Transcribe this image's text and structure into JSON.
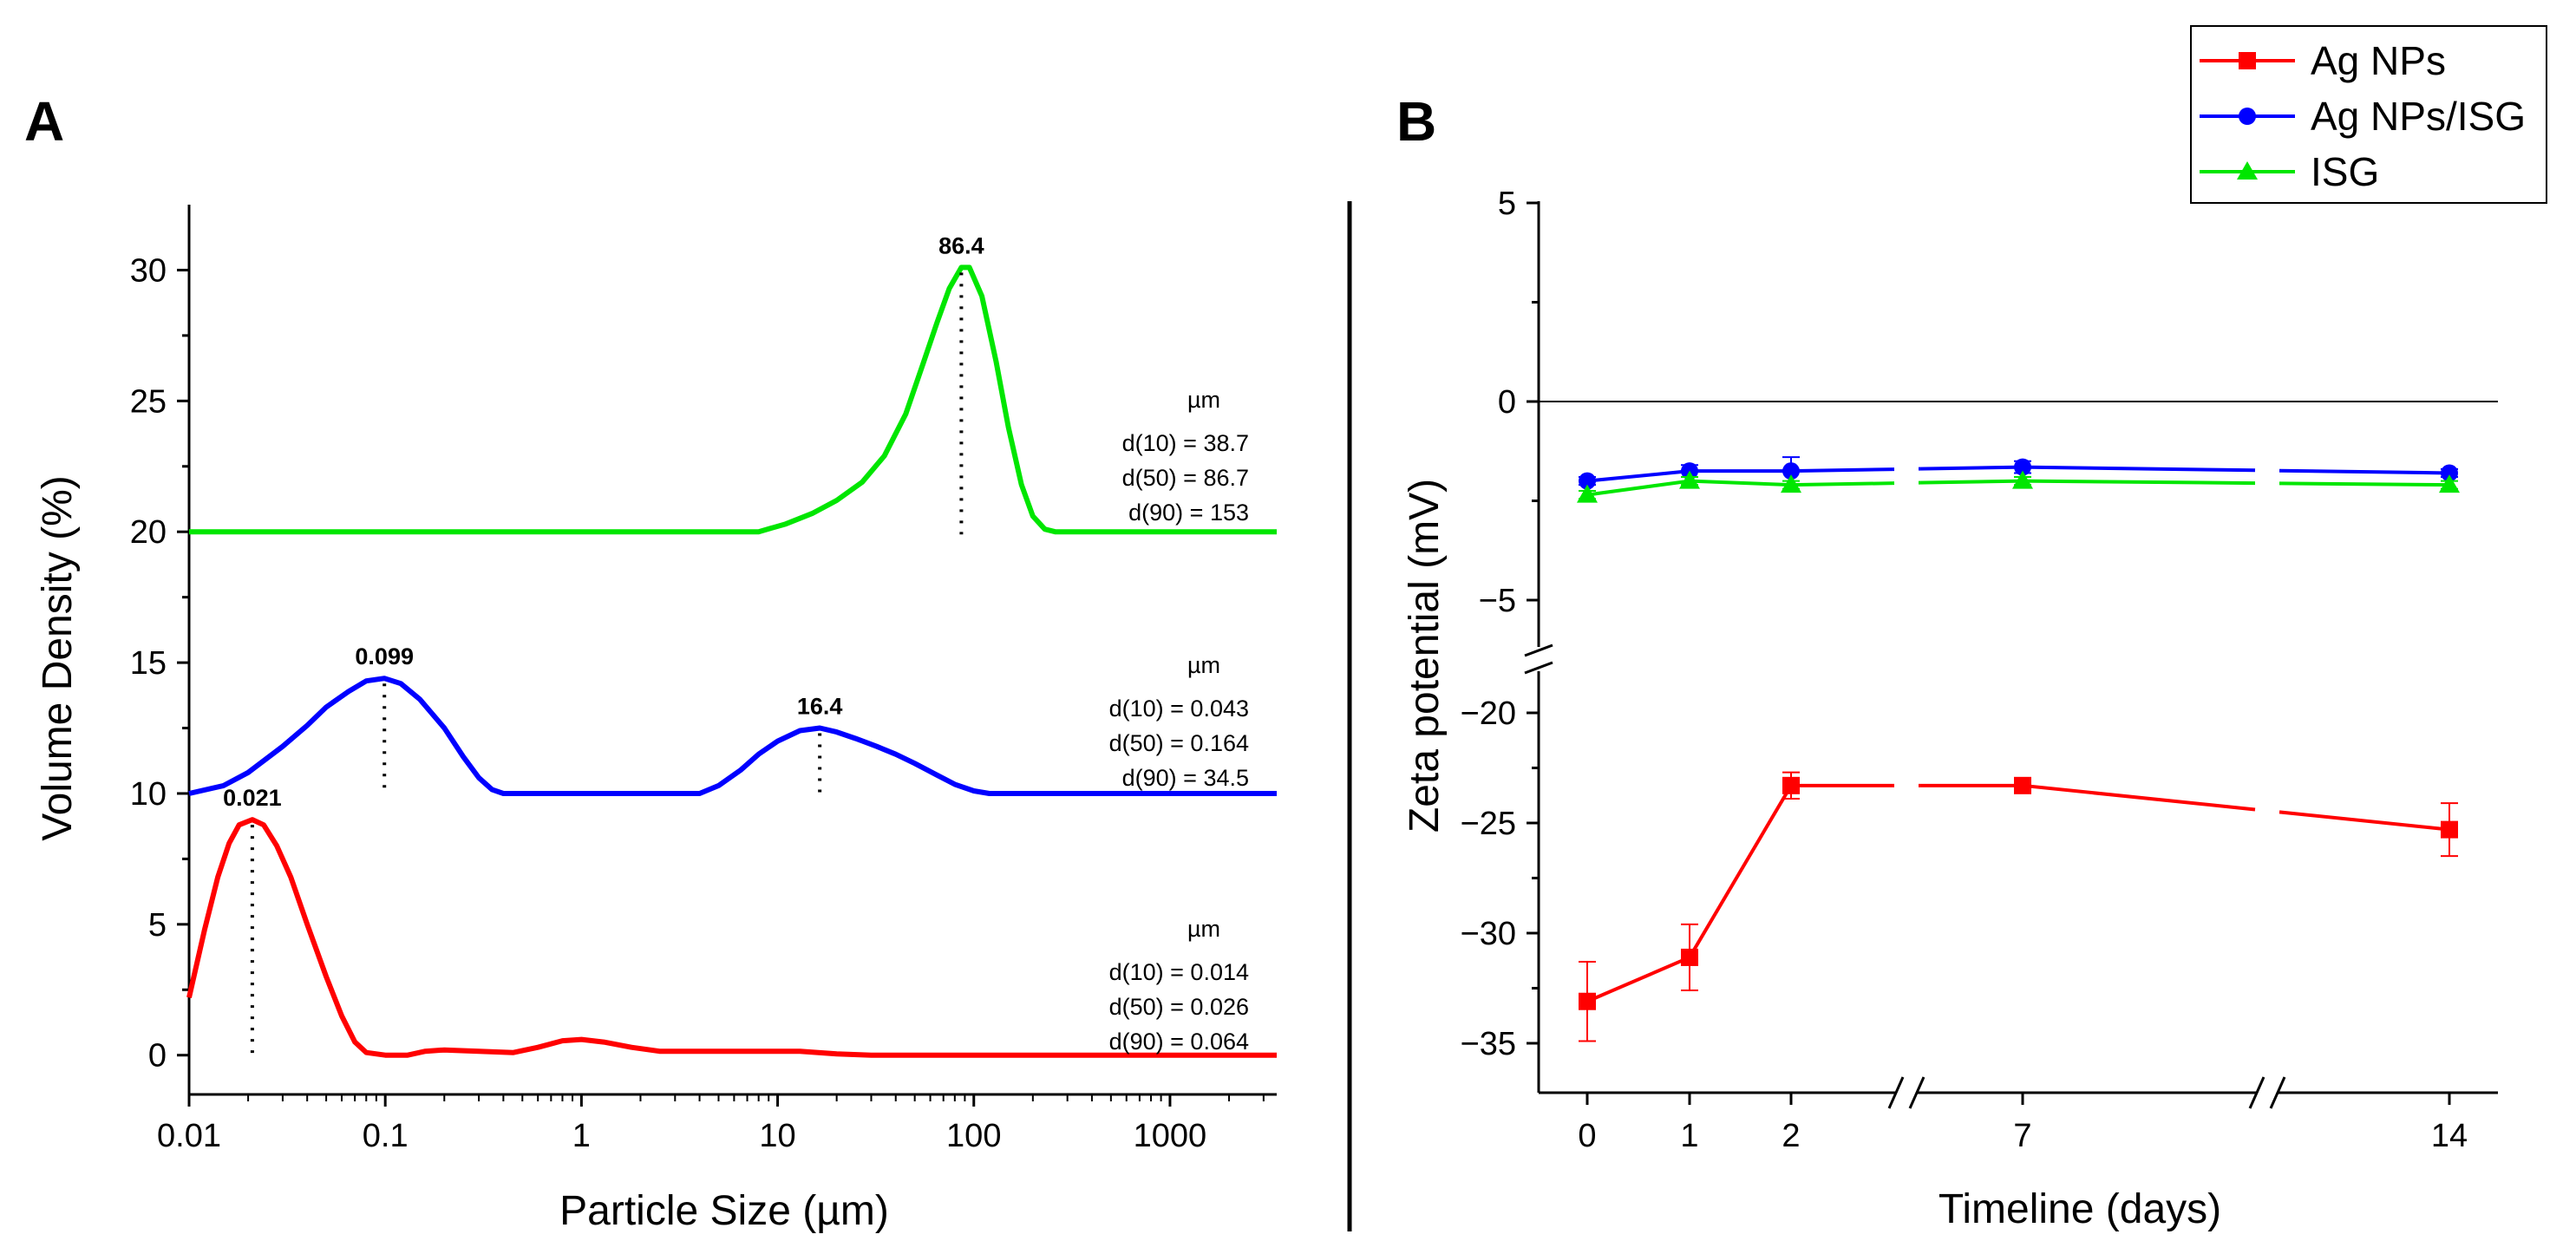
{
  "figure": {
    "panel_a_label": "A",
    "panel_b_label": "B"
  },
  "chart_data": [
    {
      "type": "line",
      "panel": "A",
      "title": "",
      "xlabel": "Particle Size (µm)",
      "ylabel": "Volume Density (%)",
      "xscale": "log",
      "xlim": [
        0.01,
        3500
      ],
      "ylim": [
        -1.5,
        32.5
      ],
      "x_ticks": [
        {
          "value": 0.01,
          "label": "0.01"
        },
        {
          "value": 0.1,
          "label": "0.1"
        },
        {
          "value": 1,
          "label": "1"
        },
        {
          "value": 10,
          "label": "10"
        },
        {
          "value": 100,
          "label": "100"
        },
        {
          "value": 1000,
          "label": "1000"
        }
      ],
      "y_ticks": [
        {
          "value": 0,
          "label": "0"
        },
        {
          "value": 5,
          "label": "5"
        },
        {
          "value": 10,
          "label": "10"
        },
        {
          "value": 15,
          "label": "15"
        },
        {
          "value": 20,
          "label": "20"
        },
        {
          "value": 25,
          "label": "25"
        },
        {
          "value": 30,
          "label": "30"
        }
      ],
      "series": [
        {
          "name": "Ag NPs",
          "color": "#ff0000",
          "points": [
            [
              0.01,
              2.2
            ],
            [
              0.012,
              4.8
            ],
            [
              0.014,
              6.8
            ],
            [
              0.016,
              8.1
            ],
            [
              0.018,
              8.8
            ],
            [
              0.021,
              9.0
            ],
            [
              0.024,
              8.8
            ],
            [
              0.028,
              8.0
            ],
            [
              0.033,
              6.8
            ],
            [
              0.04,
              5.0
            ],
            [
              0.05,
              3.0
            ],
            [
              0.06,
              1.5
            ],
            [
              0.07,
              0.5
            ],
            [
              0.08,
              0.1
            ],
            [
              0.1,
              0.0
            ],
            [
              0.13,
              0.0
            ],
            [
              0.16,
              0.15
            ],
            [
              0.2,
              0.2
            ],
            [
              0.3,
              0.15
            ],
            [
              0.45,
              0.1
            ],
            [
              0.6,
              0.3
            ],
            [
              0.8,
              0.55
            ],
            [
              1.0,
              0.6
            ],
            [
              1.3,
              0.5
            ],
            [
              1.8,
              0.3
            ],
            [
              2.5,
              0.15
            ],
            [
              5,
              0.15
            ],
            [
              10,
              0.15
            ],
            [
              13,
              0.15
            ],
            [
              20,
              0.05
            ],
            [
              30,
              0.0
            ],
            [
              100,
              0.0
            ],
            [
              3500,
              0.0
            ]
          ],
          "peaks": [
            {
              "x": 0.021,
              "y": 9.0,
              "label": "0.021"
            }
          ],
          "stats": {
            "unit": "µm",
            "d10": "d(10) = 0.014",
            "d50": "d(50) = 0.026",
            "d90": "d(90) = 0.064"
          }
        },
        {
          "name": "Ag NPs/ISG",
          "color": "#0000ff",
          "points": [
            [
              0.01,
              10.0
            ],
            [
              0.015,
              10.3
            ],
            [
              0.02,
              10.8
            ],
            [
              0.03,
              11.8
            ],
            [
              0.04,
              12.6
            ],
            [
              0.05,
              13.3
            ],
            [
              0.065,
              13.9
            ],
            [
              0.08,
              14.3
            ],
            [
              0.099,
              14.4
            ],
            [
              0.12,
              14.2
            ],
            [
              0.15,
              13.6
            ],
            [
              0.2,
              12.5
            ],
            [
              0.25,
              11.4
            ],
            [
              0.3,
              10.6
            ],
            [
              0.35,
              10.15
            ],
            [
              0.4,
              10.0
            ],
            [
              1,
              10.0
            ],
            [
              4,
              10.0
            ],
            [
              5,
              10.3
            ],
            [
              6.5,
              10.9
            ],
            [
              8,
              11.5
            ],
            [
              10,
              12.0
            ],
            [
              13,
              12.4
            ],
            [
              16.4,
              12.5
            ],
            [
              20,
              12.35
            ],
            [
              25,
              12.1
            ],
            [
              32,
              11.8
            ],
            [
              40,
              11.5
            ],
            [
              50,
              11.15
            ],
            [
              65,
              10.7
            ],
            [
              80,
              10.35
            ],
            [
              100,
              10.1
            ],
            [
              120,
              10.0
            ],
            [
              3500,
              10.0
            ]
          ],
          "peaks": [
            {
              "x": 0.099,
              "y": 14.4,
              "label": "0.099"
            },
            {
              "x": 16.4,
              "y": 12.5,
              "label": "16.4"
            }
          ],
          "stats": {
            "unit": "µm",
            "d10": "d(10) = 0.043",
            "d50": "d(50) = 0.164",
            "d90": "d(90) = 34.5"
          }
        },
        {
          "name": "ISG",
          "color": "#00e600",
          "points": [
            [
              0.01,
              20.0
            ],
            [
              1,
              20.0
            ],
            [
              8,
              20.0
            ],
            [
              11,
              20.3
            ],
            [
              15,
              20.7
            ],
            [
              20,
              21.2
            ],
            [
              27,
              21.9
            ],
            [
              35,
              22.9
            ],
            [
              45,
              24.5
            ],
            [
              55,
              26.4
            ],
            [
              65,
              28.0
            ],
            [
              75,
              29.3
            ],
            [
              86.4,
              30.1
            ],
            [
              95,
              30.1
            ],
            [
              110,
              29.0
            ],
            [
              130,
              26.5
            ],
            [
              150,
              24.0
            ],
            [
              175,
              21.8
            ],
            [
              200,
              20.6
            ],
            [
              230,
              20.1
            ],
            [
              260,
              20.0
            ],
            [
              3500,
              20.0
            ]
          ],
          "peaks": [
            {
              "x": 86.4,
              "y": 30.1,
              "label": "86.4"
            }
          ],
          "stats": {
            "unit": "µm",
            "d10": "d(10) = 38.7",
            "d50": "d(50) = 86.7",
            "d90": "d(90) = 153"
          }
        }
      ]
    },
    {
      "type": "line",
      "panel": "B",
      "title": "",
      "xlabel": "Timeline (days)",
      "ylabel": "Zeta potential (mV)",
      "x_axis_breaks": [
        "between 2 and 7",
        "between 7 and 14"
      ],
      "y_axis_break": "between -7 and -19",
      "y_upper_range": [
        -7,
        5
      ],
      "y_lower_range": [
        -37,
        -19
      ],
      "y_ticks": [
        {
          "value": 5,
          "label": "5"
        },
        {
          "value": 0,
          "label": "0"
        },
        {
          "value": -5,
          "label": "−5"
        },
        {
          "value": -20,
          "label": "−20"
        },
        {
          "value": -25,
          "label": "−25"
        },
        {
          "value": -30,
          "label": "−30"
        },
        {
          "value": -35,
          "label": "−35"
        }
      ],
      "x_ticks": [
        {
          "value": 0,
          "label": "0"
        },
        {
          "value": 1,
          "label": "1"
        },
        {
          "value": 2,
          "label": "2"
        },
        {
          "value": 7,
          "label": "7"
        },
        {
          "value": 14,
          "label": "14"
        }
      ],
      "reference_line": 0,
      "series": [
        {
          "name": "Ag NPs",
          "color": "#ff0000",
          "marker": "square",
          "x": [
            0,
            1,
            2,
            7,
            14
          ],
          "y": [
            -33.1,
            -31.1,
            -23.3,
            -23.3,
            -25.3
          ],
          "err": [
            1.8,
            1.5,
            0.6,
            0.2,
            1.2
          ]
        },
        {
          "name": "Ag NPs/ISG",
          "color": "#0000ff",
          "marker": "circle",
          "x": [
            0,
            1,
            2,
            7,
            14
          ],
          "y": [
            -2.0,
            -1.75,
            -1.75,
            -1.65,
            -1.8
          ],
          "err": [
            0.1,
            0.15,
            0.35,
            0.15,
            0.1
          ]
        },
        {
          "name": "ISG",
          "color": "#00e600",
          "marker": "triangle",
          "x": [
            0,
            1,
            2,
            7,
            14
          ],
          "y": [
            -2.35,
            -2.0,
            -2.1,
            -2.0,
            -2.1
          ],
          "err": [
            0.1,
            0.1,
            0.1,
            0.1,
            0.1
          ]
        }
      ],
      "legend": {
        "position": "top-right",
        "entries": [
          "Ag NPs",
          "Ag NPs/ISG",
          "ISG"
        ]
      }
    }
  ]
}
